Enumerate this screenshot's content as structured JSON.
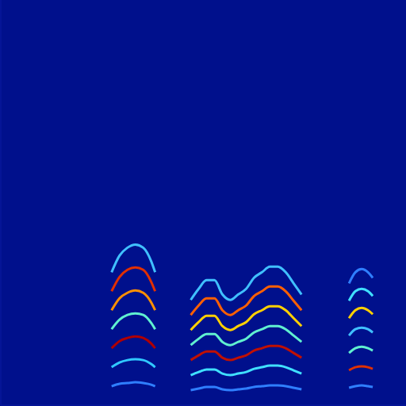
{
  "chart_data": {
    "type": "line",
    "tick_labels": false,
    "grid": false,
    "xlim": [
      0,
      512
    ],
    "ylim": [
      0,
      512
    ],
    "series": [
      {
        "color": "#2f7fff",
        "x": [
          140,
          150,
          160,
          170,
          180,
          190,
          195
        ],
        "values": [
          24,
          27,
          28,
          29,
          28,
          26,
          24
        ]
      },
      {
        "color": "#30c8ff",
        "x": [
          140,
          150,
          160,
          170,
          180,
          190,
          195
        ],
        "values": [
          48,
          54,
          57,
          58,
          57,
          52,
          48
        ]
      },
      {
        "color": "#b00000",
        "x": [
          140,
          150,
          160,
          170,
          180,
          190,
          195
        ],
        "values": [
          72,
          81,
          85,
          87,
          85,
          78,
          72
        ]
      },
      {
        "color": "#60f0d0",
        "x": [
          140,
          150,
          160,
          170,
          180,
          190,
          195
        ],
        "values": [
          96,
          108,
          114,
          116,
          114,
          104,
          96
        ]
      },
      {
        "color": "#ff9000",
        "x": [
          140,
          150,
          160,
          170,
          180,
          190,
          195
        ],
        "values": [
          120,
          135,
          142,
          145,
          142,
          130,
          120
        ]
      },
      {
        "color": "#e03000",
        "x": [
          140,
          150,
          160,
          170,
          180,
          190,
          195
        ],
        "values": [
          144,
          162,
          171,
          174,
          171,
          156,
          144
        ]
      },
      {
        "color": "#40c0ff",
        "x": [
          140,
          150,
          160,
          170,
          180,
          190,
          195
        ],
        "values": [
          168,
          189,
          199,
          203,
          199,
          182,
          168
        ]
      },
      {
        "color": "#2f7fff",
        "x": [
          240,
          250,
          260,
          270,
          280,
          290,
          300,
          310,
          320,
          330,
          340,
          350,
          360,
          370,
          380
        ],
        "values": [
          19,
          21,
          23,
          23,
          20,
          19,
          20,
          21,
          23,
          24,
          25,
          25,
          24,
          22,
          20
        ]
      },
      {
        "color": "#40e0ff",
        "x": [
          240,
          250,
          260,
          270,
          280,
          290,
          300,
          310,
          320,
          330,
          340,
          350,
          360,
          370,
          380
        ],
        "values": [
          38,
          42,
          45,
          45,
          40,
          38,
          40,
          42,
          46,
          48,
          50,
          50,
          48,
          44,
          40
        ]
      },
      {
        "color": "#c01000",
        "x": [
          240,
          250,
          260,
          270,
          280,
          290,
          300,
          310,
          320,
          330,
          340,
          350,
          360,
          370,
          380
        ],
        "values": [
          57,
          63,
          68,
          68,
          60,
          57,
          60,
          63,
          69,
          72,
          75,
          75,
          72,
          66,
          60
        ]
      },
      {
        "color": "#60f0d0",
        "x": [
          240,
          250,
          260,
          270,
          280,
          290,
          300,
          310,
          320,
          330,
          340,
          350,
          360,
          370,
          380
        ],
        "values": [
          76,
          84,
          90,
          90,
          80,
          76,
          80,
          84,
          92,
          96,
          100,
          100,
          96,
          88,
          80
        ]
      },
      {
        "color": "#ffd000",
        "x": [
          240,
          250,
          260,
          270,
          280,
          290,
          300,
          310,
          320,
          330,
          340,
          350,
          360,
          370,
          380
        ],
        "values": [
          95,
          105,
          113,
          113,
          100,
          95,
          100,
          105,
          115,
          120,
          125,
          125,
          120,
          110,
          100
        ]
      },
      {
        "color": "#ff6000",
        "x": [
          240,
          250,
          260,
          270,
          280,
          290,
          300,
          310,
          320,
          330,
          340,
          350,
          360,
          370,
          380
        ],
        "values": [
          114,
          126,
          135,
          135,
          120,
          114,
          120,
          126,
          138,
          144,
          150,
          150,
          144,
          132,
          120
        ]
      },
      {
        "color": "#40c0ff",
        "x": [
          240,
          250,
          260,
          270,
          280,
          290,
          300,
          310,
          320,
          330,
          340,
          350,
          360,
          370,
          380
        ],
        "values": [
          133,
          147,
          158,
          158,
          140,
          133,
          140,
          147,
          161,
          168,
          175,
          175,
          168,
          154,
          140
        ]
      },
      {
        "color": "#2f7fff",
        "x": [
          440,
          448,
          456,
          464,
          470
        ],
        "values": [
          22,
          24,
          25,
          24,
          23
        ]
      },
      {
        "color": "#e03000",
        "x": [
          440,
          448,
          456,
          464,
          470
        ],
        "values": [
          44,
          48,
          49,
          48,
          46
        ]
      },
      {
        "color": "#60f0d0",
        "x": [
          440,
          448,
          456,
          464,
          470
        ],
        "values": [
          66,
          72,
          74,
          72,
          69
        ]
      },
      {
        "color": "#40c0ff",
        "x": [
          440,
          448,
          456,
          464,
          470
        ],
        "values": [
          88,
          96,
          98,
          96,
          92
        ]
      },
      {
        "color": "#ffd000",
        "x": [
          440,
          448,
          456,
          464,
          470
        ],
        "values": [
          110,
          120,
          123,
          120,
          115
        ]
      },
      {
        "color": "#40e0ff",
        "x": [
          440,
          448,
          456,
          464,
          470
        ],
        "values": [
          132,
          144,
          147,
          144,
          138
        ]
      },
      {
        "color": "#2f7fff",
        "x": [
          440,
          448,
          456,
          464,
          470
        ],
        "values": [
          154,
          168,
          172,
          168,
          161
        ]
      }
    ]
  }
}
